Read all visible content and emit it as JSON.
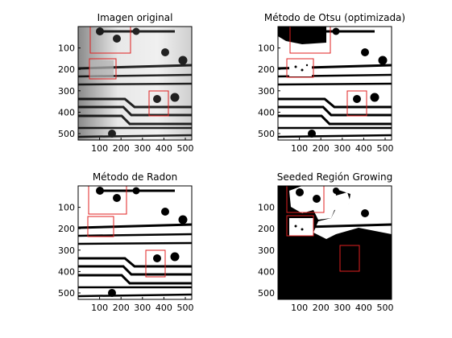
{
  "figure": {
    "panels": [
      {
        "title": "Imagen original",
        "xticks": [
          "100",
          "200",
          "300",
          "400",
          "500"
        ],
        "yticks": [
          "100",
          "200",
          "300",
          "400",
          "500"
        ]
      },
      {
        "title": "Método de Otsu (optimizada)",
        "xticks": [
          "100",
          "200",
          "300",
          "400",
          "500"
        ],
        "yticks": [
          "100",
          "200",
          "300",
          "400",
          "500"
        ]
      },
      {
        "title": "Método de Radon",
        "xticks": [
          "100",
          "200",
          "300",
          "400",
          "500"
        ],
        "yticks": [
          "100",
          "200",
          "300",
          "400",
          "500"
        ]
      },
      {
        "title": "Seeded Región Growing",
        "xticks": [
          "100",
          "200",
          "300",
          "400",
          "500"
        ],
        "yticks": [
          "100",
          "200",
          "300",
          "400",
          "500"
        ]
      }
    ]
  },
  "colors": {
    "roi": "#e02020",
    "ink": "#000000",
    "bg": "#ffffff"
  }
}
